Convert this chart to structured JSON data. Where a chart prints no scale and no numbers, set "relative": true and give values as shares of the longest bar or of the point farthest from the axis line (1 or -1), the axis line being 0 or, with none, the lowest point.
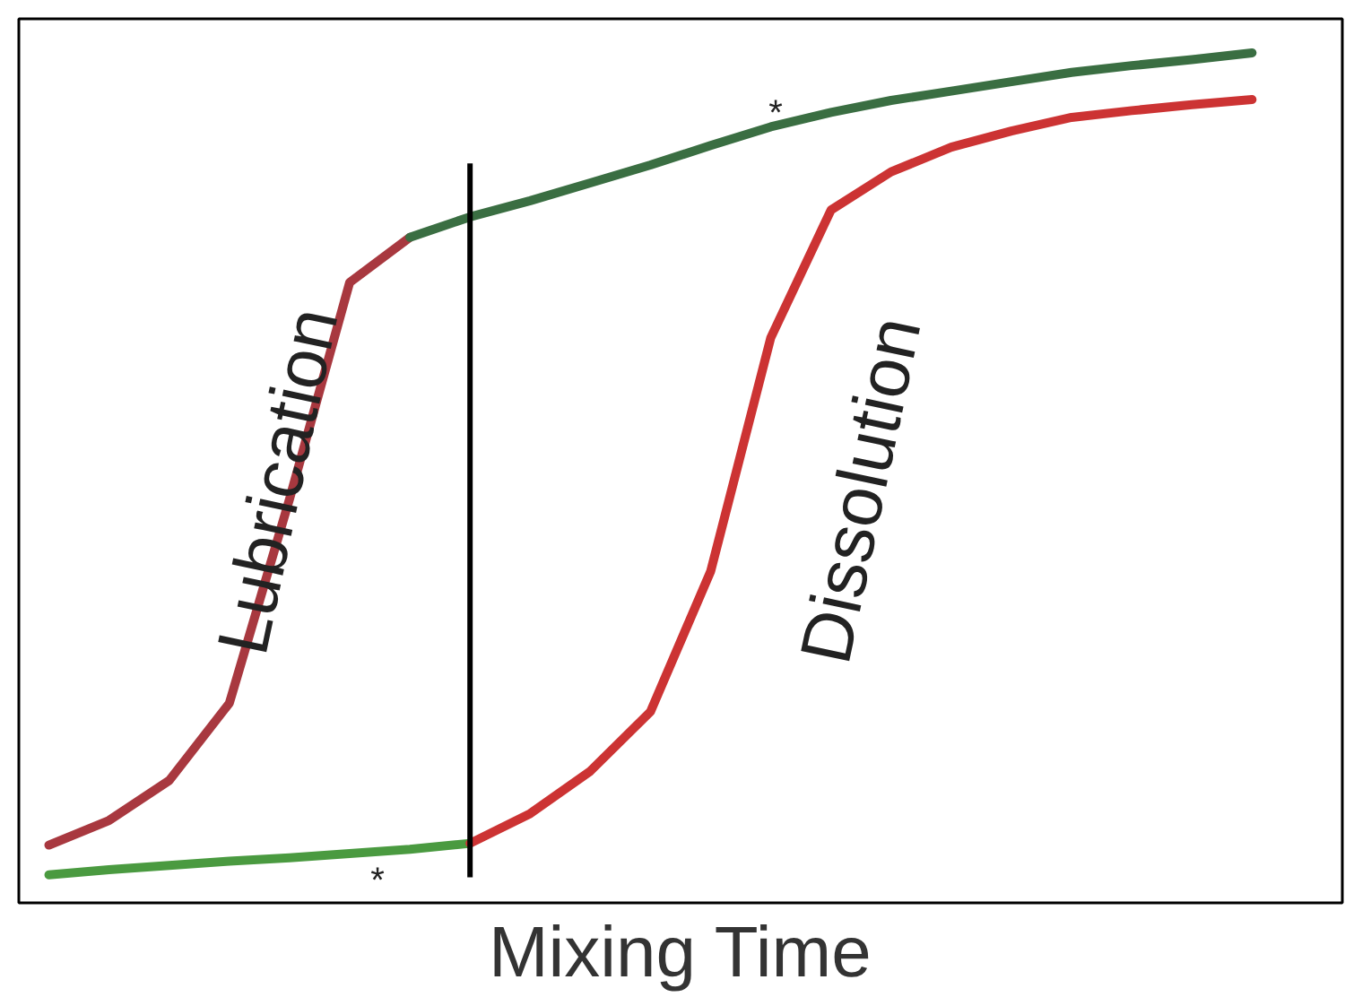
{
  "chart_data": {
    "type": "line",
    "relative": true,
    "xlabel": "Mixing Time",
    "line_style": "solid",
    "categories": [
      null,
      null,
      null,
      null,
      null,
      null,
      null,
      null,
      null,
      null,
      null,
      null,
      null,
      null,
      null,
      null,
      null,
      null,
      null,
      null,
      null
    ],
    "series": [
      {
        "color": "#a8383f",
        "values": [
          0.068,
          0.097,
          0.144,
          0.235,
          0.475,
          0.73,
          0.783,
          null,
          null,
          null,
          null,
          null,
          null,
          null,
          null,
          null,
          null,
          null,
          null,
          null,
          null
        ]
      },
      {
        "color": "#3a6e42",
        "values": [
          null,
          null,
          null,
          null,
          null,
          null,
          0.783,
          0.807,
          0.826,
          0.847,
          0.868,
          0.891,
          0.913,
          0.93,
          0.944,
          0.955,
          0.966,
          0.977,
          0.985,
          0.992,
          1.0
        ]
      },
      {
        "color": "#4a9a40",
        "values": [
          0.033,
          0.039,
          0.044,
          0.049,
          0.053,
          0.058,
          0.063,
          0.07,
          null,
          null,
          null,
          null,
          null,
          null,
          null,
          null,
          null,
          null,
          null,
          null,
          null
        ]
      },
      {
        "color": "#cc3333",
        "values": [
          null,
          null,
          null,
          null,
          null,
          null,
          null,
          0.07,
          0.105,
          0.155,
          0.225,
          0.39,
          0.665,
          0.815,
          0.86,
          0.889,
          0.908,
          0.924,
          0.932,
          0.939,
          0.945
        ]
      }
    ],
    "annotations": [
      "Lubrication",
      "Dissolution",
      "*",
      "*"
    ]
  }
}
